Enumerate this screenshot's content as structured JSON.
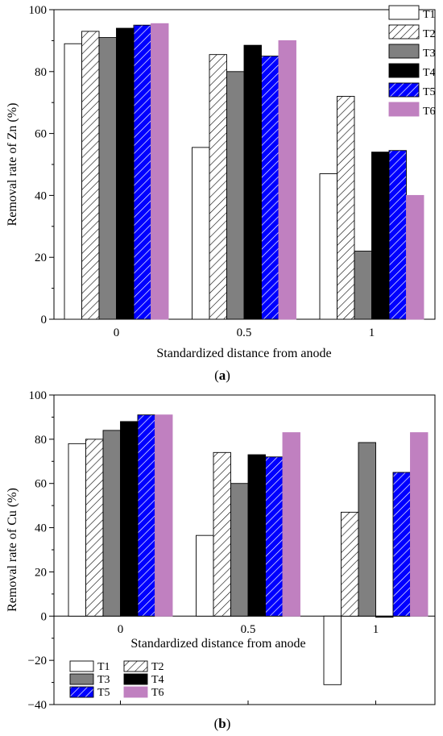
{
  "chart_data": [
    {
      "type": "bar",
      "panel_label": "a",
      "xlabel": "Standardized distance from anode",
      "ylabel": "Removal rate of Zn (%)",
      "categories": [
        "0",
        "0.5",
        "1"
      ],
      "ylim": [
        0,
        100
      ],
      "yticks": [
        "0",
        "20",
        "40",
        "60",
        "80",
        "100"
      ],
      "legend_position": "top-right",
      "series": [
        {
          "name": "T1",
          "values": [
            89,
            55.5,
            47
          ],
          "color": "#ffffff",
          "pattern": "none"
        },
        {
          "name": "T2",
          "values": [
            93,
            85.5,
            72
          ],
          "color": "#ffffff",
          "pattern": "hatch-black"
        },
        {
          "name": "T3",
          "values": [
            91,
            80,
            22
          ],
          "color": "#808080",
          "pattern": "none"
        },
        {
          "name": "T4",
          "values": [
            94,
            88.5,
            54
          ],
          "color": "#000000",
          "pattern": "none"
        },
        {
          "name": "T5",
          "values": [
            95,
            85,
            54.5
          ],
          "color": "#0000ff",
          "pattern": "hatch-white"
        },
        {
          "name": "T6",
          "values": [
            95.5,
            90,
            40
          ],
          "color": "#c080c0",
          "pattern": "none"
        }
      ]
    },
    {
      "type": "bar",
      "panel_label": "b",
      "xlabel": "Standardized distance from anode",
      "ylabel": "Removal rate of Cu (%)",
      "categories": [
        "0",
        "0.5",
        "1"
      ],
      "ylim": [
        -40,
        100
      ],
      "yticks": [
        "−40",
        "−20",
        "0",
        "20",
        "40",
        "60",
        "80",
        "100"
      ],
      "legend_position": "bottom-left",
      "series": [
        {
          "name": "T1",
          "values": [
            78,
            36.5,
            -31
          ],
          "color": "#ffffff",
          "pattern": "none"
        },
        {
          "name": "T2",
          "values": [
            80,
            74,
            47
          ],
          "color": "#ffffff",
          "pattern": "hatch-black"
        },
        {
          "name": "T3",
          "values": [
            84,
            60,
            78.5
          ],
          "color": "#808080",
          "pattern": "none"
        },
        {
          "name": "T4",
          "values": [
            88,
            73,
            -0.5
          ],
          "color": "#000000",
          "pattern": "none"
        },
        {
          "name": "T5",
          "values": [
            91,
            72,
            65
          ],
          "color": "#0000ff",
          "pattern": "hatch-white"
        },
        {
          "name": "T6",
          "values": [
            91,
            83,
            83
          ],
          "color": "#c080c0",
          "pattern": "none"
        }
      ]
    }
  ]
}
